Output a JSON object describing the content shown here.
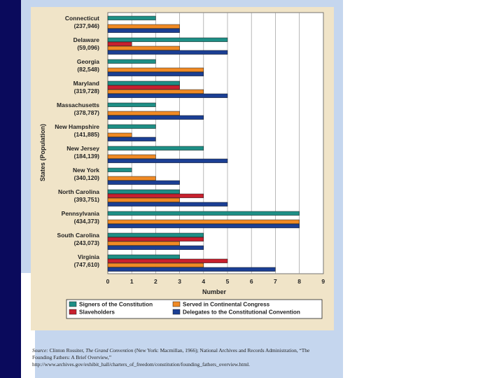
{
  "chart_data": {
    "type": "bar",
    "orientation": "horizontal",
    "title": "",
    "xlabel": "Number",
    "ylabel": "States (Population)",
    "xlim": [
      0,
      9
    ],
    "xticks": [
      0,
      1,
      2,
      3,
      4,
      5,
      6,
      7,
      8,
      9
    ],
    "grid": true,
    "legend_position": "bottom",
    "categories": [
      {
        "state": "Connecticut",
        "population": "(237,946)"
      },
      {
        "state": "Delaware",
        "population": "(59,096)"
      },
      {
        "state": "Georgia",
        "population": "(82,548)"
      },
      {
        "state": "Maryland",
        "population": "(319,728)"
      },
      {
        "state": "Massachusetts",
        "population": "(378,787)"
      },
      {
        "state": "New Hampshire",
        "population": "(141,885)"
      },
      {
        "state": "New Jersey",
        "population": "(184,139)"
      },
      {
        "state": "New York",
        "population": "(340,120)"
      },
      {
        "state": "North Carolina",
        "population": "(393,751)"
      },
      {
        "state": "Pennsylvania",
        "population": "(434,373)"
      },
      {
        "state": "South Carolina",
        "population": "(243,073)"
      },
      {
        "state": "Virginia",
        "population": "(747,610)"
      }
    ],
    "series": [
      {
        "name": "Signers of the Constitution",
        "color": "#1e8f86",
        "values": [
          2,
          5,
          2,
          3,
          2,
          2,
          4,
          1,
          3,
          8,
          4,
          3
        ]
      },
      {
        "name": "Slaveholders",
        "color": "#c8202e",
        "values": [
          0,
          1,
          0,
          3,
          0,
          0,
          0,
          0,
          4,
          0,
          4,
          5
        ]
      },
      {
        "name": "Served in Continental Congress",
        "color": "#f08a24",
        "values": [
          3,
          3,
          4,
          4,
          3,
          1,
          2,
          2,
          3,
          8,
          3,
          4
        ]
      },
      {
        "name": "Delegates to the Constitutional Convention",
        "color": "#1b3f94",
        "values": [
          3,
          5,
          4,
          5,
          4,
          2,
          5,
          3,
          5,
          8,
          4,
          7
        ]
      }
    ]
  },
  "source": {
    "label": "Source:",
    "text_parts": [
      "Clinton Rossiter, ",
      "The Grand Convention",
      " (New York: Macmillan, 1966); National Archives and Records Administration, “The Founding Fathers: A Brief Overview,” http://www.archives.gov/exhibit_hall/charters_of_freedom/constitution/founding_fathers_overview.html."
    ]
  }
}
